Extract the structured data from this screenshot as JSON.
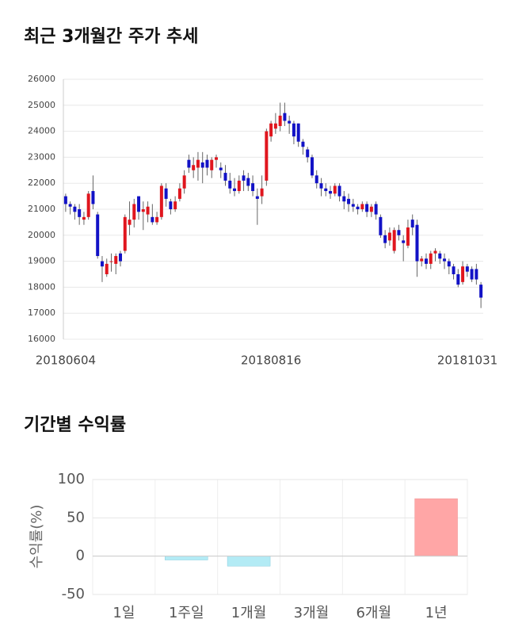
{
  "chart_data": [
    {
      "type": "candlestick",
      "title": "최근 3개월간 주가 추세",
      "categories": [
        "20180604",
        null,
        null,
        null,
        null,
        null,
        null,
        null,
        null,
        null,
        null,
        null,
        null,
        null,
        null,
        null,
        null,
        null,
        null,
        null,
        null,
        null,
        null,
        null,
        null,
        null,
        null,
        null,
        null,
        null,
        null,
        null,
        null,
        null,
        null,
        null,
        null,
        null,
        null,
        null,
        null,
        null,
        null,
        null,
        null,
        "20180816",
        null,
        null,
        null,
        null,
        null,
        null,
        null,
        null,
        null,
        null,
        null,
        null,
        null,
        null,
        null,
        null,
        null,
        null,
        null,
        null,
        null,
        null,
        null,
        null,
        null,
        null,
        null,
        null,
        null,
        null,
        null,
        null,
        null,
        null,
        null,
        null,
        null,
        null,
        null,
        null,
        null,
        null,
        null,
        null,
        null,
        "20181031"
      ],
      "open": [
        21500,
        21200,
        21100,
        21000,
        20600,
        20700,
        21700,
        20800,
        19000,
        18500,
        19000,
        18900,
        19300,
        19400,
        20400,
        20600,
        21500,
        20900,
        20800,
        20700,
        20500,
        20700,
        21800,
        21300,
        21000,
        21400,
        21800,
        22900,
        22500,
        22600,
        22800,
        22900,
        22500,
        22900,
        22600,
        22400,
        22100,
        21800,
        21700,
        22300,
        22200,
        22000,
        21500,
        21500,
        22100,
        23800,
        24100,
        24200,
        24700,
        24400,
        24300,
        24300,
        23600,
        23300,
        23000,
        22300,
        22000,
        21800,
        21700,
        21600,
        21900,
        21500,
        21400,
        21200,
        21100,
        21000,
        21200,
        20900,
        21200,
        20700,
        20000,
        19800,
        19400,
        20200,
        19800,
        19600,
        20600,
        20400,
        19000,
        19100,
        18900,
        19300,
        19300,
        19100,
        19000,
        18800,
        18500,
        18200,
        18800,
        18700,
        18700,
        18100
      ],
      "high": [
        21600,
        21300,
        21200,
        21200,
        20900,
        21700,
        22300,
        20900,
        19200,
        19100,
        19300,
        19300,
        19400,
        20800,
        21300,
        21400,
        21500,
        21300,
        21300,
        21200,
        20900,
        22000,
        22000,
        21400,
        21500,
        22000,
        22500,
        23100,
        23000,
        23200,
        23200,
        23100,
        23000,
        23100,
        22800,
        22700,
        22400,
        22200,
        22300,
        22500,
        22400,
        22300,
        21800,
        22300,
        24100,
        24400,
        24700,
        25100,
        25100,
        24600,
        24400,
        24300,
        23700,
        23400,
        23100,
        22500,
        22200,
        22000,
        21900,
        22000,
        22000,
        21700,
        21600,
        21400,
        21200,
        21300,
        21300,
        21200,
        21300,
        20800,
        20200,
        20300,
        20300,
        20400,
        20000,
        20600,
        20800,
        20600,
        19200,
        19300,
        19400,
        19500,
        19400,
        19300,
        19100,
        18900,
        18700,
        19000,
        18900,
        18800,
        18900,
        18200
      ],
      "low": [
        20900,
        20800,
        20600,
        20400,
        20400,
        20600,
        21000,
        19100,
        18200,
        18400,
        18600,
        18500,
        18800,
        19300,
        20000,
        20300,
        20600,
        20200,
        20500,
        20400,
        20400,
        20600,
        21100,
        20800,
        20900,
        21300,
        21600,
        22400,
        22200,
        22100,
        22000,
        22300,
        22200,
        22600,
        22200,
        21900,
        21600,
        21500,
        21600,
        21700,
        21700,
        21500,
        20400,
        21200,
        21900,
        23600,
        23900,
        24000,
        24200,
        23900,
        23500,
        23400,
        23100,
        22800,
        22200,
        21800,
        21500,
        21500,
        21400,
        21500,
        21300,
        21000,
        20900,
        20900,
        20800,
        20900,
        20700,
        20700,
        20600,
        19900,
        19500,
        19600,
        19300,
        19800,
        19000,
        19500,
        20000,
        18400,
        18800,
        18700,
        18700,
        19000,
        18900,
        18700,
        18500,
        18300,
        18000,
        18100,
        18400,
        18200,
        18100,
        17200
      ],
      "close": [
        21200,
        21100,
        20900,
        20700,
        20700,
        21600,
        21200,
        19200,
        18800,
        18900,
        19000,
        19200,
        19000,
        20700,
        20600,
        21200,
        20900,
        21000,
        21100,
        20500,
        20700,
        21900,
        21400,
        21000,
        21300,
        21800,
        22300,
        22600,
        22700,
        22900,
        22600,
        22600,
        22900,
        23000,
        22500,
        22100,
        21800,
        21700,
        22100,
        22100,
        21900,
        21700,
        21400,
        21800,
        24000,
        24300,
        24300,
        24600,
        24400,
        24300,
        23800,
        23600,
        23400,
        23000,
        22300,
        22000,
        21800,
        21700,
        21600,
        21900,
        21500,
        21300,
        21200,
        21100,
        21000,
        21200,
        20900,
        21100,
        20800,
        20000,
        19700,
        20100,
        20200,
        20000,
        19700,
        20300,
        20300,
        19000,
        19100,
        18900,
        19300,
        19400,
        19100,
        19000,
        18800,
        18500,
        18100,
        18800,
        18600,
        18300,
        18300,
        17600
      ],
      "up_color": "#e0161e",
      "down_color": "#1212c6",
      "ylim": [
        16000,
        26000
      ],
      "yticks": [
        16000,
        17000,
        18000,
        19000,
        20000,
        21000,
        22000,
        23000,
        24000,
        25000,
        26000
      ],
      "grid": true
    },
    {
      "type": "bar",
      "title": "기간별 수익률",
      "ylabel": "수익률(%)",
      "categories": [
        "1일",
        "1주일",
        "1개월",
        "3개월",
        "6개월",
        "1년"
      ],
      "values": [
        0,
        -5,
        -13,
        0,
        0,
        75
      ],
      "colors": [
        "#b3ebf5",
        "#b3ebf5",
        "#b3ebf5",
        "#b3ebf5",
        "#b3ebf5",
        "#ffa6a6"
      ],
      "ylim": [
        -50,
        100
      ],
      "yticks": [
        -50,
        0,
        50,
        100
      ],
      "grid": true
    }
  ]
}
